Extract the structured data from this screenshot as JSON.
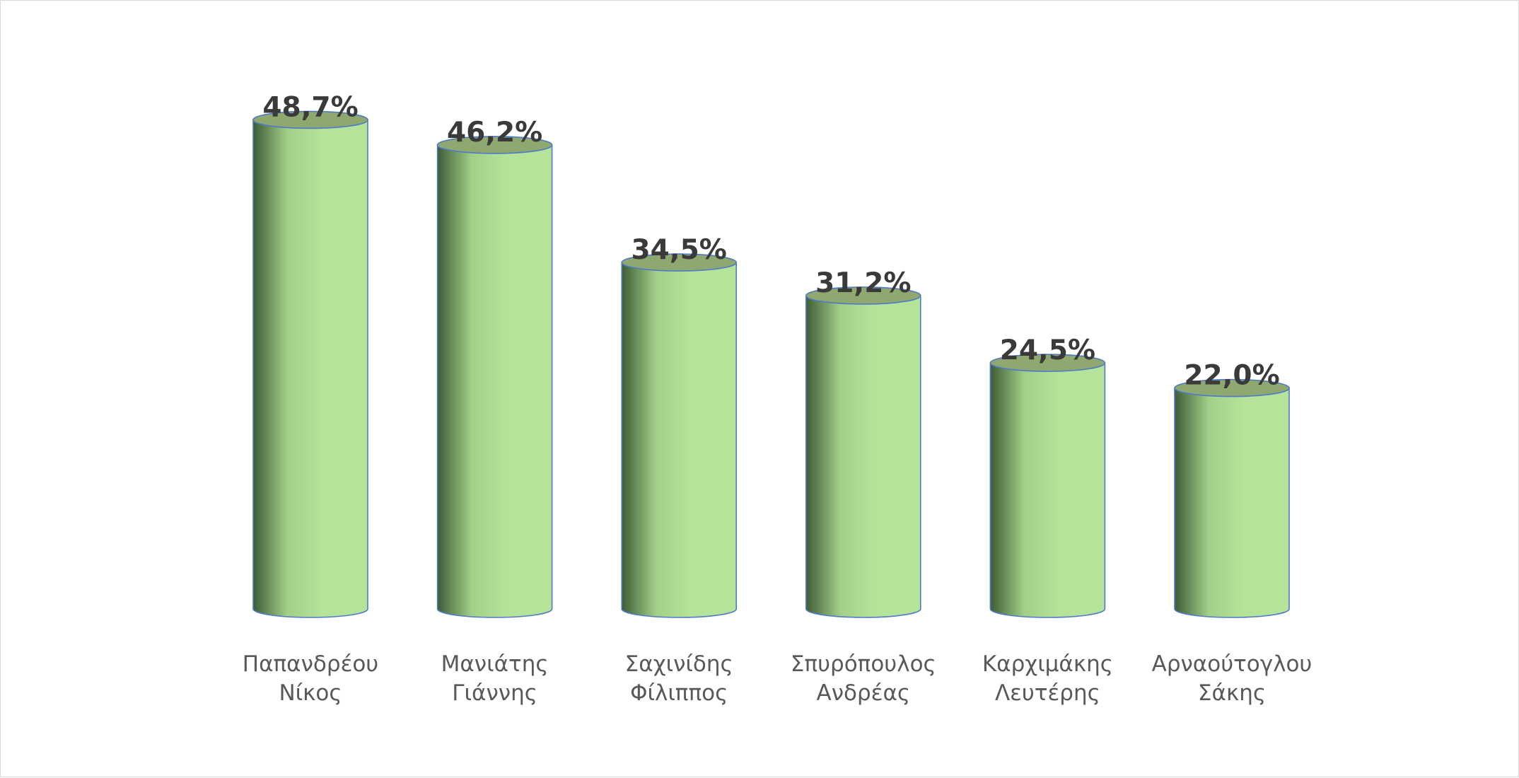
{
  "chart_data": {
    "type": "bar",
    "style": "3d-cylinder",
    "title": "",
    "xlabel": "",
    "ylabel": "",
    "ylim": [
      0,
      54
    ],
    "grid": false,
    "legend": "none",
    "categories": [
      [
        "Παπανδρέου",
        "Νίκος"
      ],
      [
        "Μανιάτης",
        "Γιάννης"
      ],
      [
        "Σαχινίδης",
        "Φίλιππος"
      ],
      [
        "Σπυρόπουλος",
        "Ανδρέας"
      ],
      [
        "Καρχιμάκης",
        "Λευτέρης"
      ],
      [
        "Αρναούτογλου",
        "Σάκης"
      ]
    ],
    "values": [
      48.7,
      46.2,
      34.5,
      31.2,
      24.5,
      22.0
    ],
    "data_labels": [
      "48,7%",
      "46,2%",
      "34,5%",
      "31,2%",
      "24,5%",
      "22,0%"
    ],
    "colors": {
      "bar_light": "#b5e39a",
      "bar_mid": "#a3d089",
      "bar_dark": "#3f5c36",
      "bar_top": "#8fa870",
      "outline": "#4f7ac7",
      "data_label": "#3a3a3a",
      "category_label": "#595959"
    }
  }
}
